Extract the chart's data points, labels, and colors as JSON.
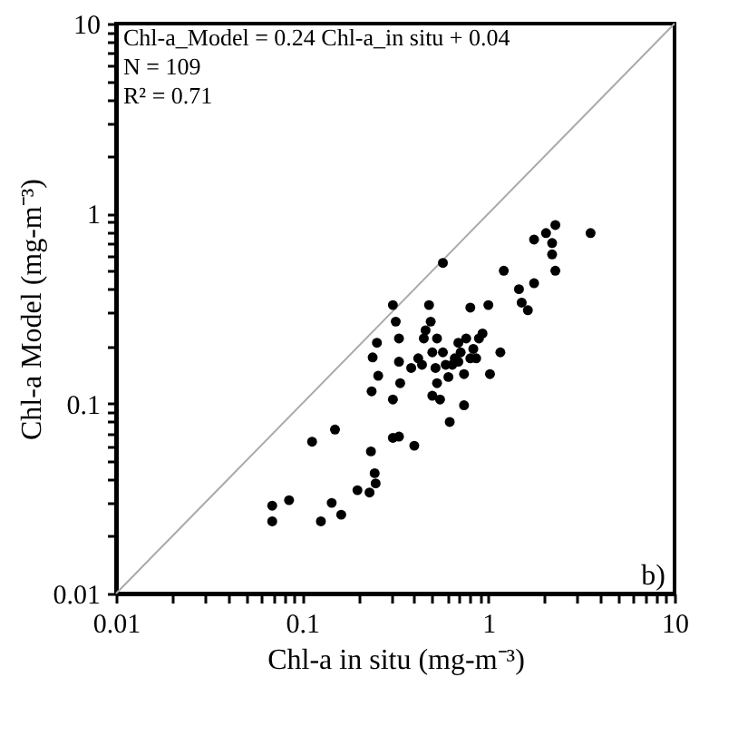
{
  "chart_data": {
    "type": "scatter",
    "xlabel": "Chl-a in situ (mg-m⁻³)",
    "ylabel": "Chl-a Model (mg-m⁻³)",
    "log": "xy",
    "grid": false,
    "marker": "circle",
    "xlim": [
      0.01,
      10
    ],
    "ylim": [
      0.01,
      10
    ],
    "xticks": [
      0.01,
      {
        "value": 0.02,
        "label": null
      },
      {
        "value": 0.03,
        "label": null
      },
      {
        "value": 0.04,
        "label": null
      },
      {
        "value": 0.05,
        "label": null
      },
      {
        "value": 0.06,
        "label": null
      },
      {
        "value": 0.07,
        "label": null
      },
      {
        "value": 0.08,
        "label": null
      },
      {
        "value": 0.09,
        "label": null
      },
      0.1,
      {
        "value": 0.2,
        "label": null
      },
      {
        "value": 0.3,
        "label": null
      },
      {
        "value": 0.4,
        "label": null
      },
      {
        "value": 0.5,
        "label": null
      },
      {
        "value": 0.6,
        "label": null
      },
      {
        "value": 0.7,
        "label": null
      },
      {
        "value": 0.8,
        "label": null
      },
      {
        "value": 0.9,
        "label": null
      },
      1,
      {
        "value": 2,
        "label": null
      },
      {
        "value": 3,
        "label": null
      },
      {
        "value": 4,
        "label": null
      },
      {
        "value": 5,
        "label": null
      },
      {
        "value": 6,
        "label": null
      },
      {
        "value": 7,
        "label": null
      },
      {
        "value": 8,
        "label": null
      },
      {
        "value": 9,
        "label": null
      },
      10
    ],
    "yticks": [
      0.01,
      {
        "value": 0.02,
        "label": null
      },
      {
        "value": 0.03,
        "label": null
      },
      {
        "value": 0.04,
        "label": null
      },
      {
        "value": 0.05,
        "label": null
      },
      {
        "value": 0.06,
        "label": null
      },
      {
        "value": 0.07,
        "label": null
      },
      {
        "value": 0.08,
        "label": null
      },
      {
        "value": 0.09,
        "label": null
      },
      0.1,
      {
        "value": 0.2,
        "label": null
      },
      {
        "value": 0.3,
        "label": null
      },
      {
        "value": 0.4,
        "label": null
      },
      {
        "value": 0.5,
        "label": null
      },
      {
        "value": 0.6,
        "label": null
      },
      {
        "value": 0.7,
        "label": null
      },
      {
        "value": 0.8,
        "label": null
      },
      {
        "value": 0.9,
        "label": null
      },
      1,
      {
        "value": 2,
        "label": null
      },
      {
        "value": 3,
        "label": null
      },
      {
        "value": 4,
        "label": null
      },
      {
        "value": 5,
        "label": null
      },
      {
        "value": 6,
        "label": null
      },
      {
        "value": 7,
        "label": null
      },
      {
        "value": 8,
        "label": null
      },
      {
        "value": 9,
        "label": null
      },
      10
    ],
    "annotations": [
      "Chl-a_Model = 0.24 Chl-a_in situ + 0.04",
      "N = 109",
      "R² = 0.71",
      "b)"
    ],
    "series": [
      {
        "type": "line",
        "color": "#aaaaaa",
        "line_style": "solid",
        "marker": "none",
        "x": [
          0.01,
          10
        ],
        "values": [
          0.01,
          10
        ]
      },
      {
        "color": "#000000",
        "x": [
          0.069,
          0.069,
          0.085,
          0.126,
          0.144,
          0.162,
          0.113,
          0.15,
          0.198,
          0.23,
          0.245,
          0.248,
          0.234,
          0.307,
          0.331,
          0.4,
          0.236,
          0.239,
          0.252,
          0.256,
          0.307,
          0.307,
          0.318,
          0.331,
          0.331,
          0.385,
          0.336,
          0.44,
          0.45,
          0.46,
          0.48,
          0.49,
          0.5,
          0.52,
          0.57,
          0.5,
          0.55,
          0.61,
          0.62,
          0.66,
          0.69,
          0.71,
          0.74,
          0.76,
          0.8,
          0.8,
          0.83,
          0.89,
          0.93,
          1.0,
          1.02,
          0.74,
          1.16,
          1.21,
          1.46,
          1.51,
          1.63,
          1.76,
          1.76,
          2.04,
          2.2,
          2.29,
          2.2,
          2.29,
          3.54,
          0.42,
          0.53,
          0.59,
          0.64,
          0.69,
          0.57,
          0.53,
          0.86
        ],
        "values": [
          0.029,
          0.024,
          0.031,
          0.024,
          0.03,
          0.026,
          0.063,
          0.073,
          0.035,
          0.034,
          0.043,
          0.038,
          0.056,
          0.066,
          0.067,
          0.06,
          0.116,
          0.175,
          0.209,
          0.14,
          0.105,
          0.33,
          0.27,
          0.22,
          0.166,
          0.154,
          0.128,
          0.16,
          0.22,
          0.243,
          0.33,
          0.27,
          0.186,
          0.154,
          0.55,
          0.11,
          0.105,
          0.138,
          0.08,
          0.173,
          0.209,
          0.186,
          0.143,
          0.22,
          0.32,
          0.173,
          0.194,
          0.22,
          0.234,
          0.33,
          0.143,
          0.098,
          0.186,
          0.5,
          0.4,
          0.34,
          0.31,
          0.43,
          0.73,
          0.79,
          0.7,
          0.87,
          0.61,
          0.5,
          0.79,
          0.173,
          0.22,
          0.16,
          0.16,
          0.166,
          0.186,
          0.128,
          0.173
        ]
      }
    ]
  }
}
